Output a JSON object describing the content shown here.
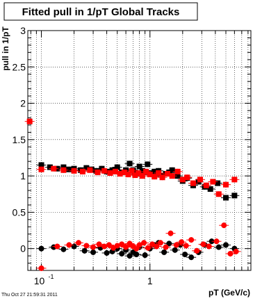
{
  "chart_data": {
    "type": "scatter",
    "title": "Fitted pull in 1/pT  Global Tracks",
    "xlabel": "pT (GeV/c)",
    "ylabel": "pull in 1/pT",
    "footer": "Thu Oct 27 21:59:31 2011",
    "xscale": "log",
    "xlim": [
      0.075,
      8.5
    ],
    "ylim": [
      -0.3,
      3.0
    ],
    "grid": true,
    "x_ticks": [
      {
        "value": 0.1,
        "base": "10",
        "exp": "-1"
      },
      {
        "value": 1,
        "label": "1"
      }
    ],
    "y_ticks": [
      "0",
      "0.5",
      "1",
      "1.5",
      "2",
      "2.5",
      "3"
    ],
    "series": [
      {
        "marker": "square",
        "color": "#000000",
        "x": [
          0.1,
          0.12,
          0.14,
          0.16,
          0.18,
          0.2,
          0.23,
          0.26,
          0.29,
          0.32,
          0.36,
          0.4,
          0.45,
          0.5,
          0.55,
          0.6,
          0.65,
          0.7,
          0.75,
          0.8,
          0.85,
          0.9,
          0.95,
          1.0,
          1.1,
          1.2,
          1.3,
          1.4,
          1.5,
          1.6,
          1.8,
          2.0,
          2.2,
          2.5,
          2.8,
          3.2,
          3.6,
          4.2,
          5.0,
          6.0
        ],
        "y": [
          1.15,
          1.12,
          1.1,
          1.12,
          1.09,
          1.1,
          1.08,
          1.11,
          1.09,
          1.07,
          1.1,
          1.06,
          1.08,
          1.12,
          1.05,
          1.08,
          1.17,
          1.08,
          1.03,
          1.13,
          1.07,
          1.05,
          1.16,
          1.04,
          1.06,
          1.07,
          1.0,
          1.03,
          1.05,
          1.08,
          1.0,
          0.93,
          0.97,
          0.87,
          0.92,
          0.85,
          0.82,
          0.9,
          0.7,
          0.73
        ]
      },
      {
        "marker": "square",
        "color": "#ff0000",
        "x": [
          0.078,
          0.1,
          0.13,
          0.16,
          0.2,
          0.24,
          0.28,
          0.33,
          0.38,
          0.43,
          0.48,
          0.53,
          0.58,
          0.63,
          0.68,
          0.73,
          0.78,
          0.85,
          0.92,
          1.0,
          1.1,
          1.2,
          1.3,
          1.45,
          1.6,
          1.8,
          2.0,
          2.2,
          2.5,
          2.9,
          3.3,
          3.8,
          4.3,
          5.0,
          6.0
        ],
        "y": [
          1.75,
          1.09,
          1.1,
          1.08,
          1.07,
          1.06,
          1.08,
          1.05,
          1.07,
          1.04,
          1.06,
          1.03,
          1.05,
          1.02,
          1.07,
          1.01,
          1.04,
          1.0,
          1.06,
          1.02,
          0.99,
          1.04,
          0.98,
          1.03,
          1.0,
          1.06,
          0.95,
          0.98,
          0.9,
          0.95,
          0.87,
          0.92,
          0.75,
          0.88,
          0.95
        ]
      },
      {
        "marker": "circle",
        "color": "#000000",
        "x": [
          0.1,
          0.13,
          0.16,
          0.2,
          0.25,
          0.3,
          0.35,
          0.4,
          0.45,
          0.5,
          0.55,
          0.6,
          0.65,
          0.7,
          0.75,
          0.8,
          0.9,
          1.0,
          1.1,
          1.2,
          1.35,
          1.5,
          1.7,
          1.9,
          2.1,
          2.4,
          2.8,
          3.2,
          3.7,
          4.3,
          5.0,
          6.0
        ],
        "y": [
          0.0,
          0.02,
          -0.01,
          0.03,
          -0.03,
          -0.05,
          0.01,
          -0.06,
          -0.04,
          0.0,
          -0.07,
          -0.02,
          -0.1,
          -0.05,
          -0.08,
          0.02,
          -0.09,
          0.0,
          0.05,
          0.08,
          -0.05,
          0.07,
          -0.02,
          0.05,
          -0.08,
          -0.12,
          -0.05,
          0.05,
          0.1,
          0.02,
          0.05,
          0.0
        ]
      },
      {
        "marker": "circle",
        "color": "#ff0000",
        "x": [
          0.1,
          0.14,
          0.18,
          0.22,
          0.26,
          0.3,
          0.34,
          0.38,
          0.42,
          0.46,
          0.5,
          0.55,
          0.6,
          0.65,
          0.7,
          0.75,
          0.8,
          0.88,
          0.96,
          1.05,
          1.15,
          1.25,
          1.4,
          1.55,
          1.75,
          1.95,
          2.15,
          2.4,
          2.7,
          3.1,
          3.5,
          4.1,
          4.8,
          5.5,
          6.2
        ],
        "y": [
          -0.27,
          0.03,
          0.05,
          0.08,
          0.04,
          0.02,
          0.06,
          0.03,
          0.05,
          0.01,
          0.04,
          0.06,
          0.02,
          0.07,
          0.03,
          0.0,
          0.05,
          0.08,
          0.01,
          0.06,
          0.03,
          0.08,
          0.02,
          0.21,
          0.05,
          0.09,
          0.04,
          0.12,
          -0.03,
          0.06,
          0.03,
          0.1,
          0.32,
          -0.07,
          -0.04
        ]
      }
    ]
  }
}
